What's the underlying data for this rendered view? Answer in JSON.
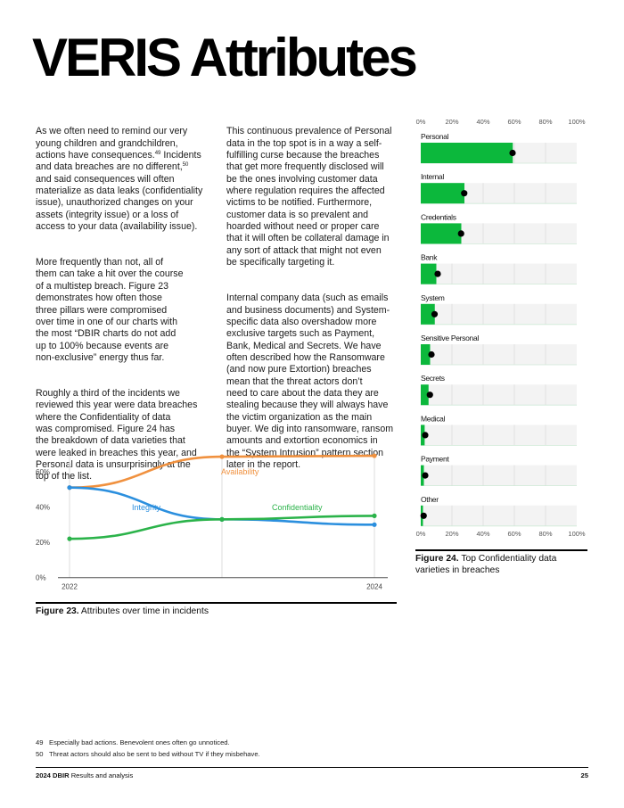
{
  "title": "VERIS Attributes",
  "column1": {
    "p1_a": "As we often need to remind our very\nyoung children and grandchildren,\nactions have consequences.",
    "p1_sup1": "49",
    "p1_b": " Incidents\nand data breaches are no different,",
    "p1_sup2": "50",
    "p1_c": "\nand said consequences will often\nmaterialize as data leaks (confidentiality\nissue), unauthorized changes on your\nassets (integrity issue) or a loss of\naccess to your data (availability issue).",
    "p2": "More frequently than not, all of\nthem can take a hit over the course\nof a multistep breach. Figure 23\ndemonstrates how often those\nthree pillars were compromised\nover time in one of our charts with\nthe most “DBIR charts do not add\nup to 100% because events are\nnon-exclusive” energy thus far.",
    "p3": "Roughly a third of the incidents we\nreviewed this year were data breaches\nwhere the Confidentiality of data\nwas compromised. Figure 24 has\nthe breakdown of data varieties that\nwere leaked in breaches this year, and\nPersonal data is unsurprisingly at the\ntop of the list."
  },
  "column2": {
    "p1": "This continuous prevalence of Personal\ndata in the top spot is in a way a self-\nfulfilling curse because the breaches\nthat get more frequently disclosed will\nbe the ones involving customer data\nwhere regulation requires the affected\nvictims to be notified. Furthermore,\ncustomer data is so prevalent and\nhoarded without need or proper care\nthat it will often be collateral damage in\nany sort of attack that might not even\nbe specifically targeting it.",
    "p2": "Internal company data (such as emails\nand business documents) and System-\nspecific data also overshadow more\nexclusive targets such as Payment,\nBank, Medical and Secrets. We have\noften described how the Ransomware\n(and now pure Extortion) breaches\nmean that the threat actors don’t\nneed to care about the data they are\nstealing because they will always have\nthe victim organization as the main\nbuyer. We dig into ransomware, ransom\namounts and extortion economics in\nthe “System Intrusion” pattern section\nlater in the report."
  },
  "figure23": {
    "label": "Figure 23.",
    "caption": " Attributes over time in incidents"
  },
  "figure24": {
    "label": "Figure 24.",
    "caption": " Top Confidentiality data\nvarieties in breaches"
  },
  "chart_data": [
    {
      "type": "line",
      "x": [
        2022,
        2023,
        2024
      ],
      "xtick_labels": [
        "2022",
        "2024"
      ],
      "ytick_labels": [
        "0%",
        "20%",
        "40%",
        "60%"
      ],
      "ylim": [
        0,
        70
      ],
      "grid": "vertical",
      "series": [
        {
          "name": "Availability",
          "values": [
            51,
            68.5,
            69
          ],
          "color": "#f0913f"
        },
        {
          "name": "Integrity",
          "values": [
            51,
            33,
            30
          ],
          "color": "#2b8fde"
        },
        {
          "name": "Confidentiality",
          "values": [
            22,
            33,
            35
          ],
          "color": "#2bb34a"
        }
      ]
    },
    {
      "type": "bar",
      "orientation": "horizontal",
      "categories": [
        "Personal",
        "Internal",
        "Credentials",
        "Bank",
        "System",
        "Sensitive Personal",
        "Secrets",
        "Medical",
        "Payment",
        "Other"
      ],
      "values": [
        59,
        28,
        26,
        10,
        9,
        6,
        5,
        2.5,
        2,
        1
      ],
      "markers": [
        58,
        27,
        25,
        10,
        8,
        6,
        5,
        2,
        2,
        1
      ],
      "xlim": [
        0,
        100
      ],
      "xtick_labels": [
        "0%",
        "20%",
        "40%",
        "60%",
        "80%",
        "100%"
      ],
      "bar_color": "#0cb83c",
      "marker_color": "#000000",
      "track_color": "#f3f3f3"
    }
  ],
  "footnotes": [
    {
      "num": "49",
      "text": "Especially bad actions. Benevolent ones often go unnoticed."
    },
    {
      "num": "50",
      "text": "Threat actors should also be sent to bed without TV if they misbehave."
    }
  ],
  "footer": {
    "brand": "2024 DBIR",
    "section": " Results and analysis",
    "page": "25"
  }
}
